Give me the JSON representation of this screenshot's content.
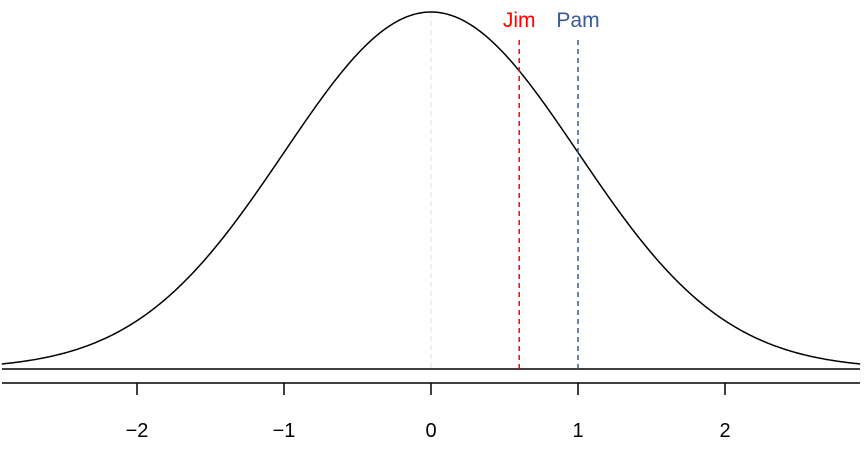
{
  "chart_data": {
    "type": "line",
    "title": "",
    "xlabel": "",
    "ylabel": "",
    "xlim": [
      -2.92,
      2.92
    ],
    "ylim": [
      0,
      0.4
    ],
    "grid": false,
    "x_ticks": [
      -2,
      -1,
      0,
      1,
      2
    ],
    "x_tick_labels": [
      "−2",
      "−1",
      "0",
      "1",
      "2"
    ],
    "curve": {
      "distribution": "standard normal density",
      "mean": 0,
      "sd": 1,
      "color": "#000000"
    },
    "center_line": {
      "x": 0,
      "color": "#e6e6e6"
    },
    "markers": [
      {
        "label": "Jim",
        "x": 0.6,
        "color": "#ff0000"
      },
      {
        "label": "Pam",
        "x": 1.0,
        "color": "#3b5998"
      }
    ]
  }
}
